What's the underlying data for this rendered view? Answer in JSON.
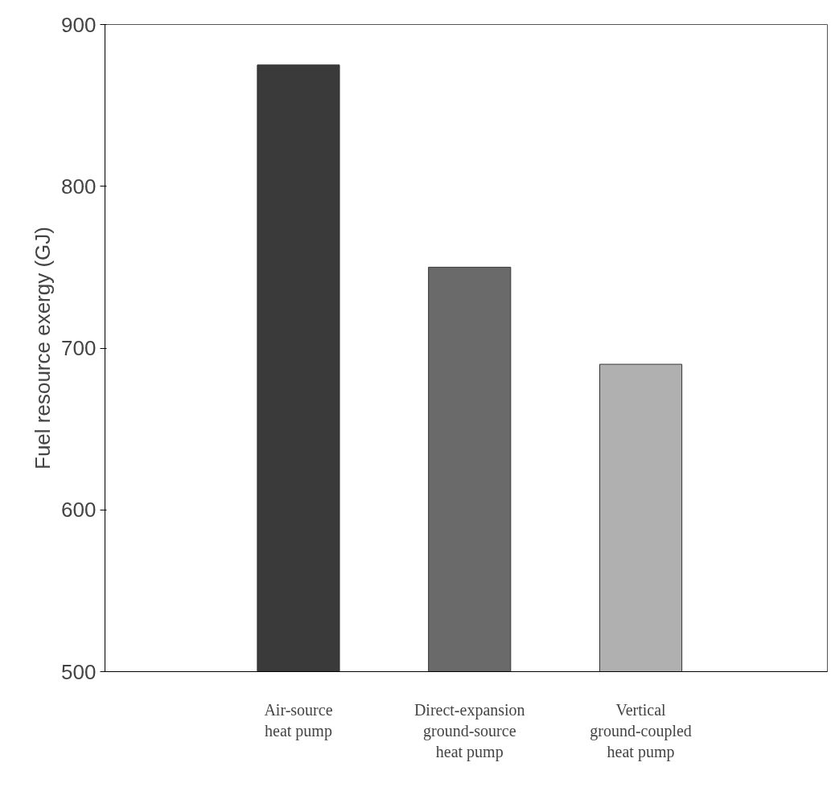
{
  "chart_data": {
    "type": "bar",
    "ylabel": "Fuel resource exergy (GJ)",
    "categories": [
      "Air-source heat pump",
      "Direct-expansion ground-source heat pump",
      "Vertical ground-coupled heat pump"
    ],
    "values": [
      875,
      750,
      690
    ],
    "colors": [
      "#3a3a3a",
      "#6a6a6a",
      "#b0b0b0"
    ],
    "ylim": [
      500,
      900
    ],
    "yticks": [
      500,
      600,
      700,
      800,
      900
    ],
    "grid": false
  }
}
